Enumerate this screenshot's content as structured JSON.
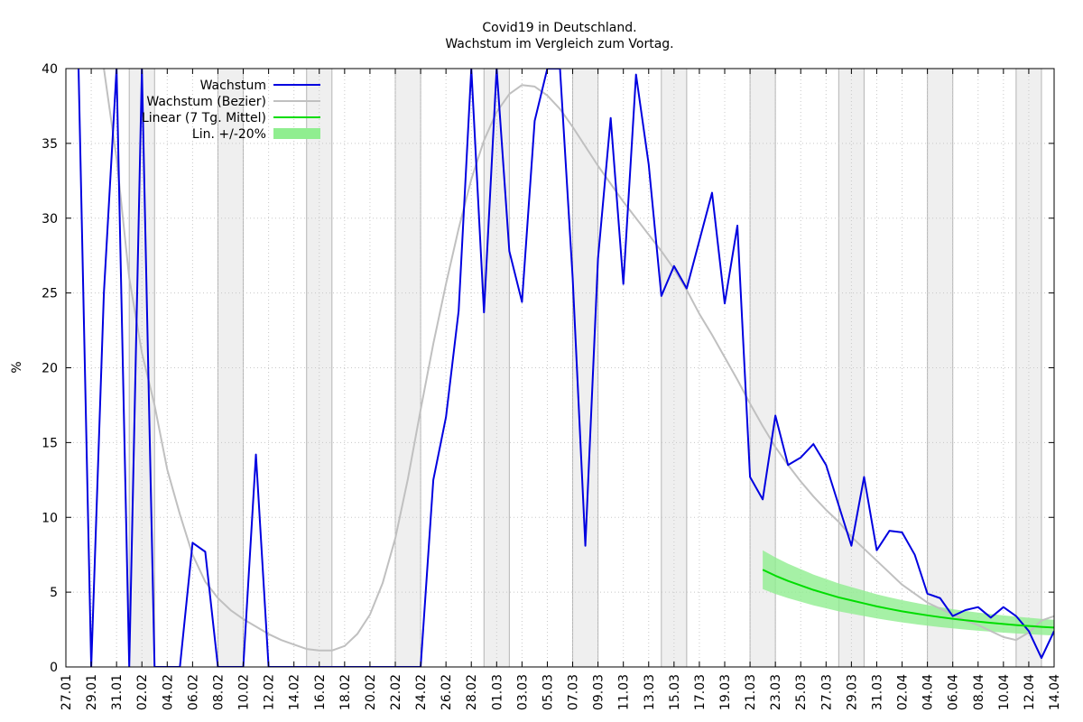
{
  "chart_data": {
    "type": "line",
    "title": "Covid19 in Deutschland.",
    "subtitle": "Wachstum im Vergleich zum Vortag.",
    "ylabel": "%",
    "xlabel": "",
    "ylim": [
      0,
      40
    ],
    "y_ticks": [
      "0",
      "5",
      "10",
      "15",
      "20",
      "25",
      "30",
      "35",
      "40"
    ],
    "x_ticks": [
      "27.01",
      "29.01",
      "31.01",
      "02.02",
      "04.02",
      "06.02",
      "08.02",
      "10.02",
      "12.02",
      "14.02",
      "16.02",
      "18.02",
      "20.02",
      "22.02",
      "24.02",
      "26.02",
      "28.02",
      "01.03",
      "03.03",
      "05.03",
      "07.03",
      "09.03",
      "11.03",
      "13.03",
      "15.03",
      "17.03",
      "19.03",
      "21.03",
      "23.03",
      "25.03",
      "27.03",
      "29.03",
      "31.03",
      "02.04",
      "04.04",
      "06.04",
      "08.04",
      "10.04",
      "12.04",
      "14.04"
    ],
    "grid": true,
    "legend_position": "top-left",
    "weekends": [
      [
        "01.02",
        "02.02"
      ],
      [
        "08.02",
        "09.02"
      ],
      [
        "15.02",
        "16.02"
      ],
      [
        "22.02",
        "23.02"
      ],
      [
        "29.02",
        "01.03"
      ],
      [
        "07.03",
        "08.03"
      ],
      [
        "14.03",
        "15.03"
      ],
      [
        "21.03",
        "22.03"
      ],
      [
        "28.03",
        "29.03"
      ],
      [
        "04.04",
        "05.04"
      ],
      [
        "11.04",
        "12.04"
      ]
    ],
    "colors": {
      "wachstum": "#0000e0",
      "bezier": "#c0c0c0",
      "linear": "#00dd00",
      "band": "#90ee90"
    },
    "series": [
      {
        "name": "Wachstum",
        "x": [
          "28.01",
          "29.01",
          "30.01",
          "31.01",
          "01.02",
          "02.02",
          "03.02",
          "04.02",
          "05.02",
          "06.02",
          "07.02",
          "08.02",
          "09.02",
          "10.02",
          "11.02",
          "12.02",
          "13.02",
          "14.02",
          "15.02",
          "16.02",
          "17.02",
          "18.02",
          "19.02",
          "20.02",
          "21.02",
          "22.02",
          "23.02",
          "24.02",
          "25.02",
          "26.02",
          "27.02",
          "28.02",
          "29.02",
          "01.03",
          "02.03",
          "03.03",
          "04.03",
          "05.03",
          "06.03",
          "07.03",
          "08.03",
          "09.03",
          "10.03",
          "11.03",
          "12.03",
          "13.03",
          "14.03",
          "15.03",
          "16.03",
          "17.03",
          "18.03",
          "19.03",
          "20.03",
          "21.03",
          "22.03",
          "23.03",
          "24.03",
          "25.03",
          "26.03",
          "27.03",
          "28.03",
          "29.03",
          "30.03",
          "31.03",
          "01.04",
          "02.04",
          "03.04",
          "04.04",
          "05.04",
          "06.04",
          "07.04",
          "08.04",
          "09.04",
          "10.04",
          "11.04",
          "12.04",
          "13.04",
          "14.04"
        ],
        "values": [
          40,
          0,
          25,
          40,
          0,
          40,
          0,
          0,
          0,
          8.3,
          7.7,
          0,
          0,
          0,
          14.2,
          0,
          0,
          0,
          0,
          0,
          0,
          0,
          0,
          0,
          0,
          0,
          0,
          0,
          12.5,
          16.7,
          23.8,
          40,
          23.7,
          40,
          27.8,
          24.4,
          36.5,
          40,
          40,
          26,
          8.1,
          27.3,
          36.7,
          25.6,
          39.6,
          33.6,
          24.8,
          26.8,
          25.3,
          28.5,
          31.7,
          24.3,
          29.5,
          12.7,
          11.2,
          16.8,
          13.5,
          14,
          14.9,
          13.5,
          10.8,
          8.1,
          12.7,
          7.8,
          9.1,
          9,
          7.5,
          4.9,
          4.6,
          3.4,
          3.8,
          4,
          3.3,
          4,
          3.4,
          2.4,
          0.6,
          2.4
        ]
      },
      {
        "name": "Wachstum (Bezier)",
        "x": [
          "29.01",
          "30.01",
          "31.01",
          "01.02",
          "02.02",
          "03.02",
          "04.02",
          "05.02",
          "06.02",
          "07.02",
          "08.02",
          "09.02",
          "10.02",
          "11.02",
          "12.02",
          "13.02",
          "14.02",
          "15.02",
          "16.02",
          "17.02",
          "18.02",
          "19.02",
          "20.02",
          "21.02",
          "22.02",
          "23.02",
          "24.02",
          "25.02",
          "26.02",
          "27.02",
          "28.02",
          "29.02",
          "01.03",
          "02.03",
          "03.03",
          "04.03",
          "05.03",
          "06.03",
          "07.03",
          "08.03",
          "09.03",
          "10.03",
          "11.03",
          "12.03",
          "13.03",
          "14.03",
          "15.03",
          "16.03",
          "17.03",
          "18.03",
          "19.03",
          "20.03",
          "21.03",
          "22.03",
          "23.03",
          "24.03",
          "25.03",
          "26.03",
          "27.03",
          "28.03",
          "29.03",
          "30.03",
          "31.03",
          "01.04",
          "02.04",
          "03.04",
          "04.04",
          "05.04",
          "06.04",
          "07.04",
          "08.04",
          "09.04",
          "10.04",
          "11.04",
          "12.04",
          "13.04",
          "14.04"
        ],
        "values": [
          44,
          40,
          34,
          26,
          21,
          17.5,
          13.2,
          10.2,
          7.5,
          5.7,
          4.6,
          3.8,
          3.2,
          2.7,
          2.2,
          1.8,
          1.5,
          1.2,
          1.1,
          1.1,
          1.4,
          2.2,
          3.5,
          5.6,
          8.6,
          12.6,
          17.2,
          21.6,
          25.6,
          29.3,
          32.6,
          35.2,
          37.1,
          38.3,
          38.9,
          38.8,
          38.2,
          37.3,
          36.1,
          34.8,
          33.5,
          32.3,
          31.1,
          30,
          28.9,
          27.8,
          26.6,
          25.2,
          23.6,
          22.2,
          20.7,
          19.2,
          17.6,
          16.1,
          14.7,
          13.5,
          12.4,
          11.4,
          10.5,
          9.7,
          8.7,
          7.9,
          7.1,
          6.3,
          5.5,
          4.9,
          4.3,
          3.9,
          3.5,
          3.1,
          2.8,
          2.4,
          2,
          1.8,
          2.3,
          3.1,
          3.4
        ]
      },
      {
        "name": "Linear (7 Tg. Mittel)",
        "x": [
          "22.03",
          "23.03",
          "24.03",
          "25.03",
          "26.03",
          "27.03",
          "28.03",
          "29.03",
          "30.03",
          "31.03",
          "01.04",
          "02.04",
          "03.04",
          "04.04",
          "05.04",
          "06.04",
          "07.04",
          "08.04",
          "09.04",
          "10.04",
          "11.04",
          "12.04",
          "13.04",
          "14.04"
        ],
        "values": [
          6.5,
          6.1,
          5.75,
          5.45,
          5.15,
          4.9,
          4.65,
          4.45,
          4.25,
          4.05,
          3.88,
          3.72,
          3.58,
          3.45,
          3.33,
          3.22,
          3.12,
          3.03,
          2.95,
          2.87,
          2.8,
          2.74,
          2.68,
          2.63
        ]
      }
    ],
    "band": {
      "name": "Lin. +/-20%",
      "relative": 0.2
    },
    "legend": [
      "Wachstum",
      "Wachstum (Bezier)",
      "Linear (7 Tg. Mittel)",
      "Lin. +/-20%"
    ]
  }
}
